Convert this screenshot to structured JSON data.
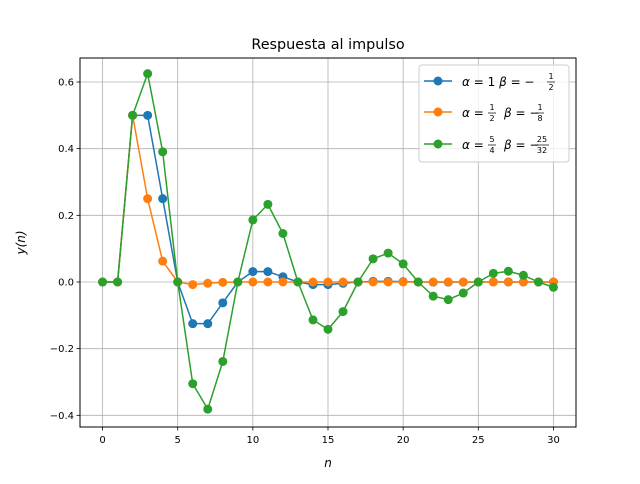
{
  "chart_data": {
    "type": "line",
    "title": "Respuesta al impulso",
    "xlabel": "n",
    "ylabel": "y(n)",
    "xlim": [
      -1.5,
      31.5
    ],
    "ylim": [
      -0.435,
      0.672
    ],
    "xticks": [
      0,
      5,
      10,
      15,
      20,
      25,
      30
    ],
    "yticks": [
      -0.4,
      -0.2,
      0.0,
      0.2,
      0.4,
      0.6
    ],
    "ytick_labels": [
      "−0.4",
      "−0.2",
      "0.0",
      "0.2",
      "0.4",
      "0.6"
    ],
    "grid": true,
    "legend_position": "top-right",
    "series": [
      {
        "legend": {
          "alpha": "1",
          "beta_num": "1",
          "beta_den": "2"
        },
        "color": "#1f77b4",
        "x": [
          0,
          1,
          2,
          3,
          4,
          5,
          6,
          7,
          8,
          9,
          10,
          11,
          12,
          13,
          14,
          15,
          16,
          17,
          18,
          19,
          20,
          21,
          22,
          23,
          24,
          25,
          26,
          27,
          28,
          29,
          30
        ],
        "y": [
          0,
          0,
          0.5,
          0.5,
          0.25,
          0,
          -0.125,
          -0.125,
          -0.0625,
          0,
          0.03125,
          0.03125,
          0.015625,
          0,
          -0.0078,
          -0.0078,
          -0.0039,
          0,
          0.002,
          0.002,
          0.001,
          0,
          -0.0005,
          -0.0005,
          -0.0002,
          0,
          0.0001,
          0.0001,
          0,
          0,
          0
        ]
      },
      {
        "legend": {
          "alpha_num": "1",
          "alpha_den": "2",
          "beta_num": "1",
          "beta_den": "8"
        },
        "color": "#ff7f0e",
        "x": [
          0,
          1,
          2,
          3,
          4,
          5,
          6,
          7,
          8,
          9,
          10,
          11,
          12,
          13,
          14,
          15,
          16,
          17,
          18,
          19,
          20,
          21,
          22,
          23,
          24,
          25,
          26,
          27,
          28,
          29,
          30
        ],
        "y": [
          0,
          0,
          0.5,
          0.25,
          0.0625,
          0,
          -0.0078,
          -0.0039,
          -0.001,
          0,
          0.0001,
          0,
          0,
          0,
          0,
          0,
          0,
          0,
          0,
          0,
          0,
          0,
          0,
          0,
          0,
          0,
          0,
          0,
          0,
          0,
          0
        ]
      },
      {
        "legend": {
          "alpha_num": "5",
          "alpha_den": "4",
          "beta_num": "25",
          "beta_den": "32"
        },
        "color": "#2ca02c",
        "x": [
          0,
          1,
          2,
          3,
          4,
          5,
          6,
          7,
          8,
          9,
          10,
          11,
          12,
          13,
          14,
          15,
          16,
          17,
          18,
          19,
          20,
          21,
          22,
          23,
          24,
          25,
          26,
          27,
          28,
          29,
          30
        ],
        "y": [
          0,
          0,
          0.5,
          0.625,
          0.3906,
          0,
          -0.3052,
          -0.3815,
          -0.2384,
          0,
          0.1863,
          0.2329,
          0.1455,
          0,
          -0.1137,
          -0.1421,
          -0.0888,
          0,
          0.0694,
          0.0867,
          0.0542,
          0,
          -0.0424,
          -0.053,
          -0.0331,
          0,
          0.0259,
          0.0323,
          0.0202,
          0,
          -0.0158
        ]
      }
    ]
  }
}
